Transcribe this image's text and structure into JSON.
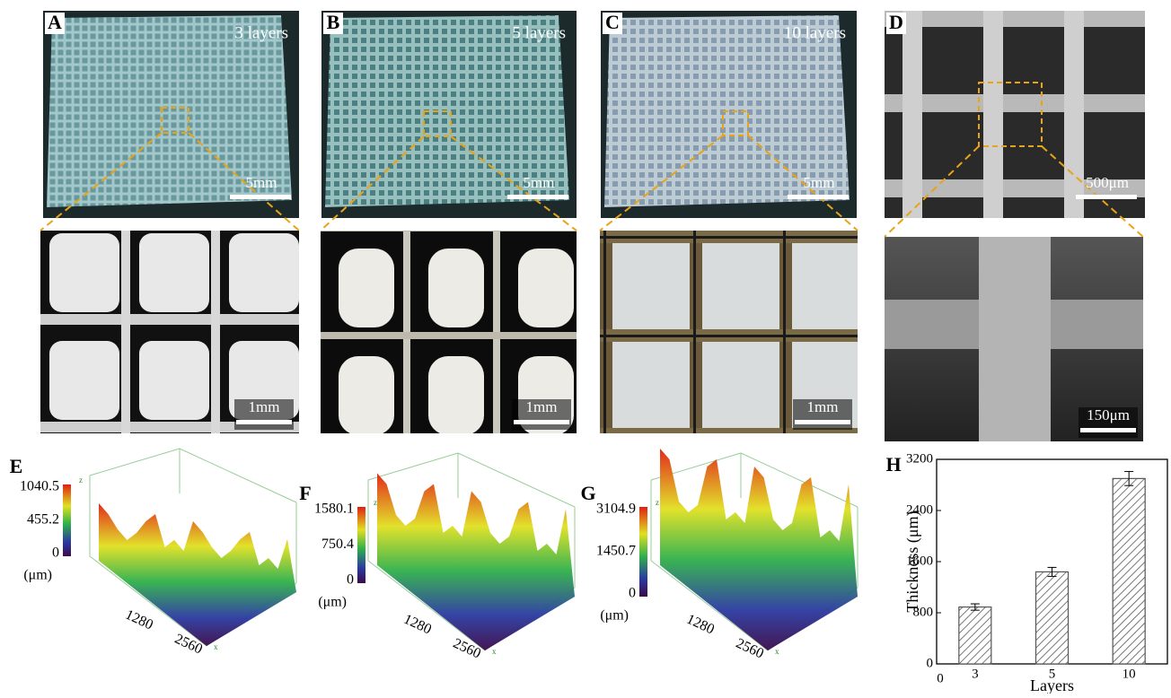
{
  "panels": [
    {
      "label": "A",
      "caption": "3 layers",
      "scale_top": "5mm",
      "scale_bottom": "1mm"
    },
    {
      "label": "B",
      "caption": "5 layers",
      "scale_top": "5mm",
      "scale_bottom": "1mm"
    },
    {
      "label": "C",
      "caption": "10 layers",
      "scale_top": "5mm",
      "scale_bottom": "1mm"
    },
    {
      "label": "D",
      "scale_top": "500μm",
      "scale_bottom": "150μm"
    }
  ],
  "profiles": [
    {
      "label": "E",
      "colorbar_ticks": [
        "1040.5",
        "455.2",
        "0"
      ],
      "unit": "(μm)",
      "axis_ticks": [
        "1280",
        "2560"
      ],
      "z_label": "z",
      "x_label": "x"
    },
    {
      "label": "F",
      "colorbar_ticks": [
        "1580.1",
        "750.4",
        "0"
      ],
      "unit": "(μm)",
      "axis_ticks": [
        "1280",
        "2560"
      ],
      "z_label": "z",
      "x_label": "x"
    },
    {
      "label": "G",
      "colorbar_ticks": [
        "3104.9",
        "1450.7",
        "0"
      ],
      "unit": "(μm)",
      "axis_ticks": [
        "1280",
        "2560"
      ],
      "z_label": "z",
      "x_label": "x"
    }
  ],
  "chart_data": {
    "type": "bar",
    "panel_label": "H",
    "y_label": "Thickness (μm)",
    "x_label": "Layers",
    "x_origin_label": "0",
    "categories": [
      "3",
      "5",
      "10"
    ],
    "values": [
      890,
      1440,
      2900
    ],
    "errors": [
      50,
      70,
      110
    ],
    "color": "#555555",
    "ylim": [
      0,
      3200
    ],
    "yticks": [
      0,
      800,
      1600,
      2400,
      3200
    ]
  }
}
